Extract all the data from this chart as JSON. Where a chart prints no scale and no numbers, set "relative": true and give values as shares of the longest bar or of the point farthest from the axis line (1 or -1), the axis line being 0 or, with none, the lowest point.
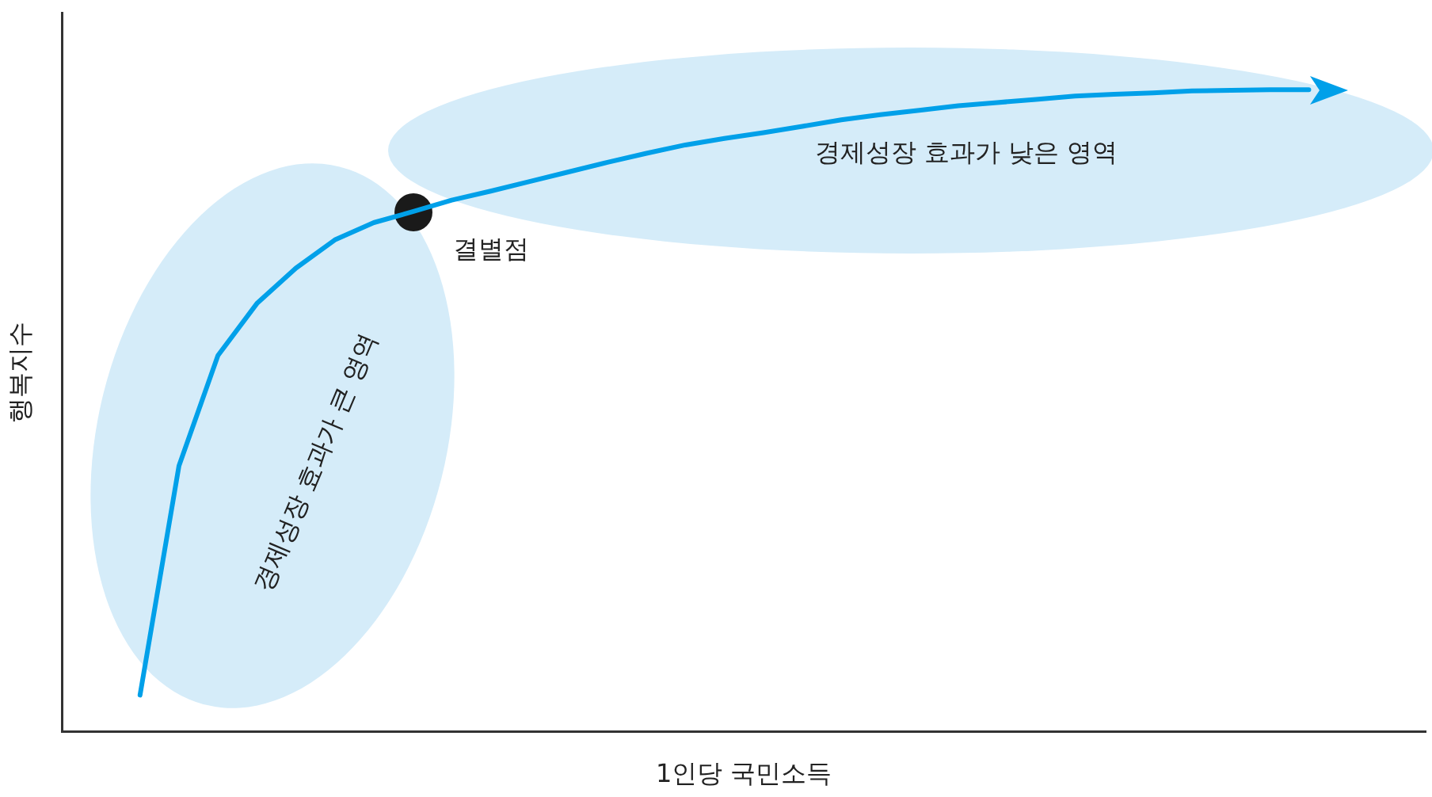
{
  "chart_data": {
    "type": "line",
    "relative": true,
    "xlabel": "1인당 국민소득",
    "ylabel": "행복지수",
    "grid": false,
    "legend": false,
    "marker": "none",
    "line_style": "solid",
    "categories": [
      null,
      null,
      null,
      null,
      null,
      null,
      null,
      null,
      null,
      null,
      null,
      null,
      null,
      null,
      null,
      null,
      null,
      null,
      null,
      null,
      null,
      null,
      null,
      null,
      null,
      null,
      null,
      null,
      null,
      null,
      null
    ],
    "series": [
      {
        "color": "#00a0e9",
        "values": [
          0.057,
          0.414,
          0.586,
          0.667,
          0.722,
          0.766,
          0.793,
          0.81,
          0.828,
          0.842,
          0.857,
          0.872,
          0.887,
          0.901,
          0.914,
          0.924,
          0.933,
          0.943,
          0.953,
          0.961,
          0.968,
          0.975,
          0.98,
          0.985,
          0.99,
          0.993,
          0.995,
          0.998,
          0.999,
          1,
          1
        ]
      }
    ],
    "annotations": [
      "경제성장 효과가 낮은 영역",
      "경제성장 효과가 큰 영역",
      "결별점"
    ]
  }
}
